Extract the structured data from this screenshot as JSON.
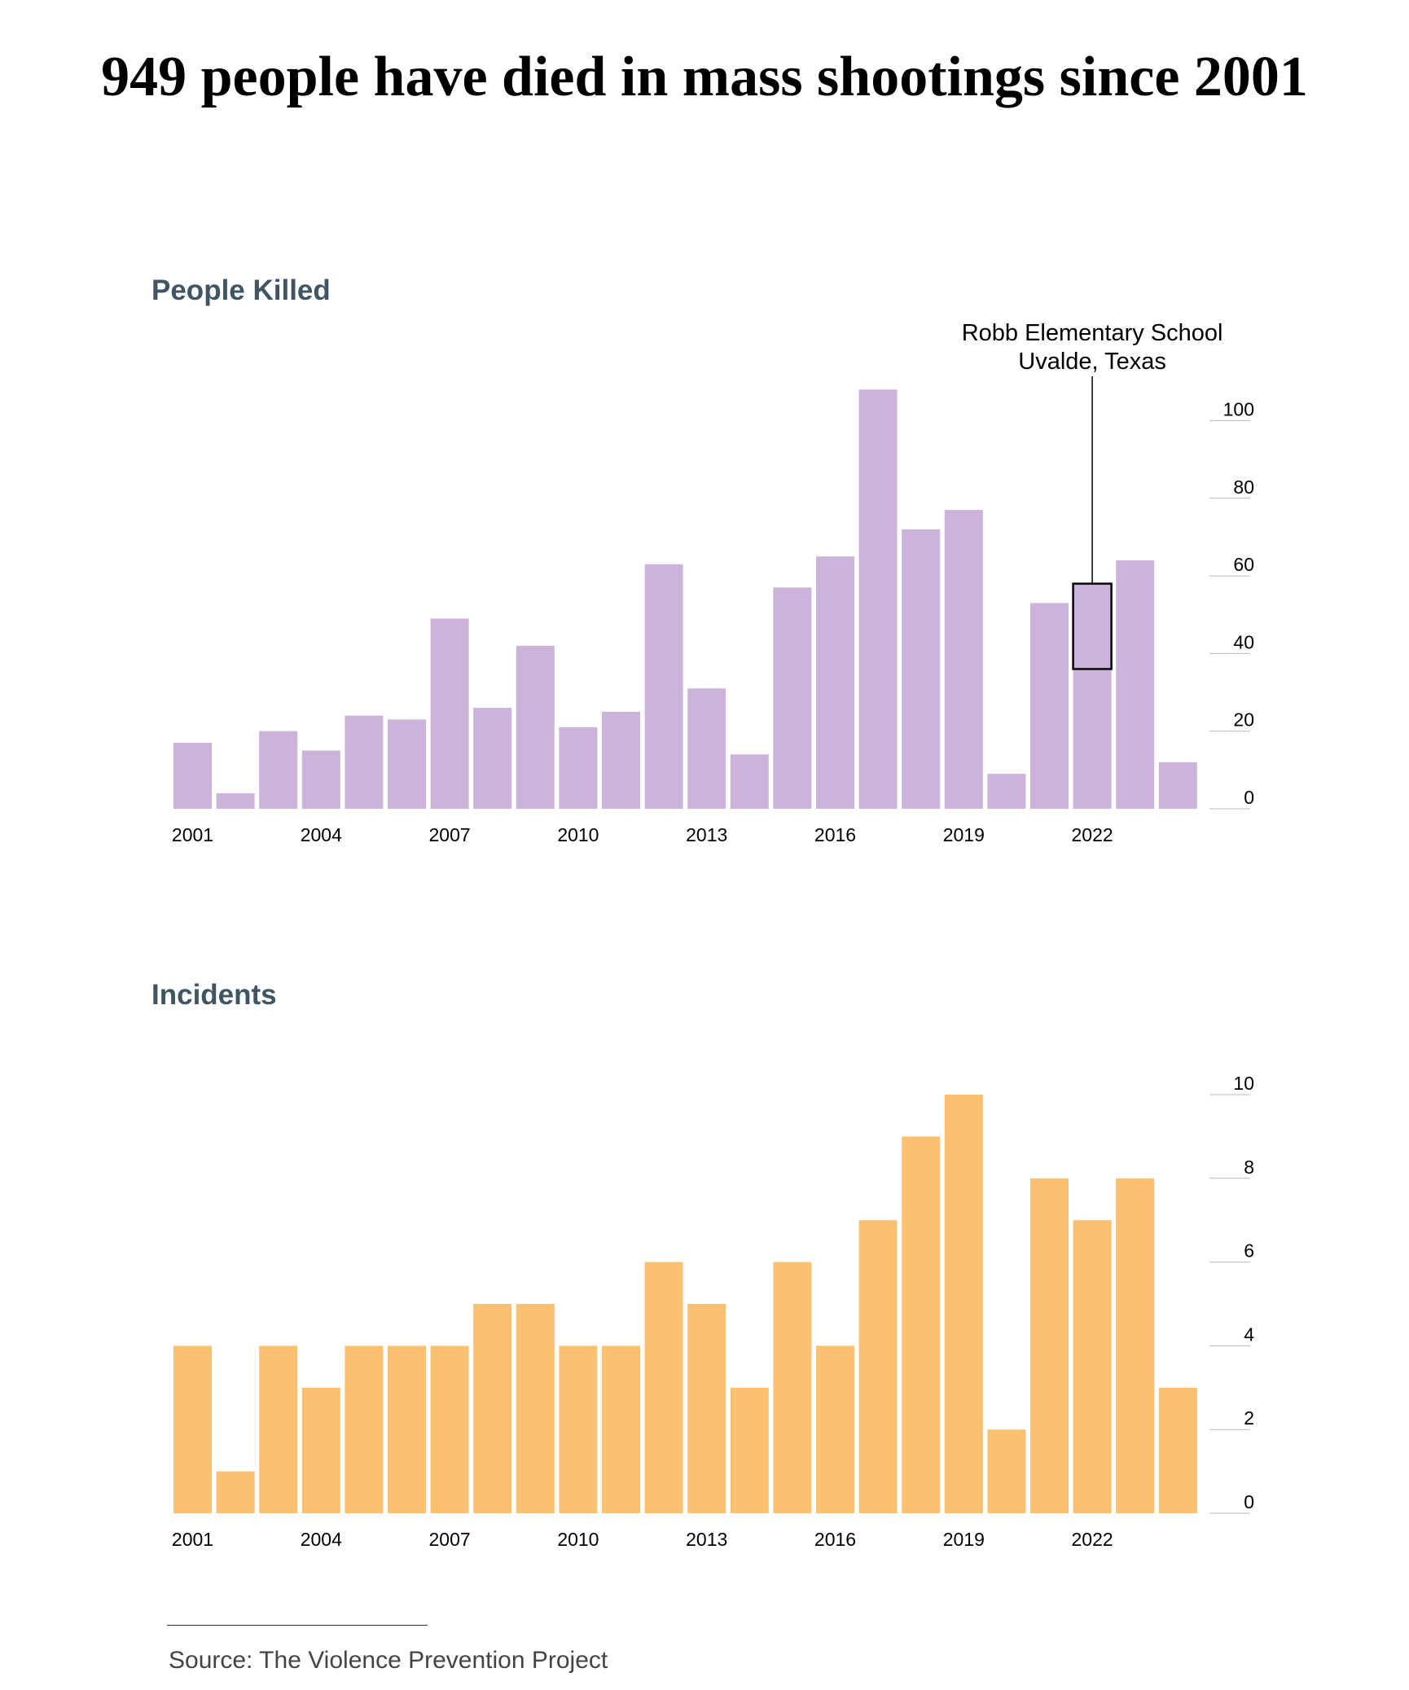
{
  "title": "949 people have died in mass shootings since 2001",
  "source": "Source: The Violence Prevention Project",
  "colors": {
    "killed_bar": "#cbb3da",
    "incidents_bar": "#fbc171",
    "label_text": "#3f5563"
  },
  "chart_data": [
    {
      "type": "bar",
      "title": "People Killed",
      "x": [
        2001,
        2002,
        2003,
        2004,
        2005,
        2006,
        2007,
        2008,
        2009,
        2010,
        2011,
        2012,
        2013,
        2014,
        2015,
        2016,
        2017,
        2018,
        2019,
        2020,
        2021,
        2022,
        2023,
        2024
      ],
      "values": [
        17,
        4,
        20,
        15,
        24,
        23,
        49,
        26,
        42,
        21,
        25,
        63,
        31,
        14,
        57,
        65,
        108,
        72,
        77,
        9,
        53,
        58,
        64,
        12
      ],
      "xticks": [
        2001,
        2004,
        2007,
        2010,
        2013,
        2016,
        2019,
        2022
      ],
      "yticks": [
        0,
        20,
        40,
        60,
        80,
        100
      ],
      "ylim": [
        0,
        110
      ],
      "y_axis_side": "right",
      "grid": false,
      "annotation": {
        "year": 2022,
        "lines": [
          "Robb Elementary School",
          "Uvalde, Texas"
        ],
        "range": [
          36,
          58
        ]
      }
    },
    {
      "type": "bar",
      "title": "Incidents",
      "x": [
        2001,
        2002,
        2003,
        2004,
        2005,
        2006,
        2007,
        2008,
        2009,
        2010,
        2011,
        2012,
        2013,
        2014,
        2015,
        2016,
        2017,
        2018,
        2019,
        2020,
        2021,
        2022,
        2023,
        2024
      ],
      "values": [
        4,
        1,
        4,
        3,
        4,
        4,
        4,
        5,
        5,
        4,
        4,
        6,
        5,
        3,
        6,
        4,
        7,
        9,
        10,
        2,
        8,
        7,
        8,
        3
      ],
      "xticks": [
        2001,
        2004,
        2007,
        2010,
        2013,
        2016,
        2019,
        2022
      ],
      "yticks": [
        0,
        2,
        4,
        6,
        8,
        10
      ],
      "ylim": [
        0,
        10
      ],
      "y_axis_side": "right",
      "grid": false
    }
  ]
}
